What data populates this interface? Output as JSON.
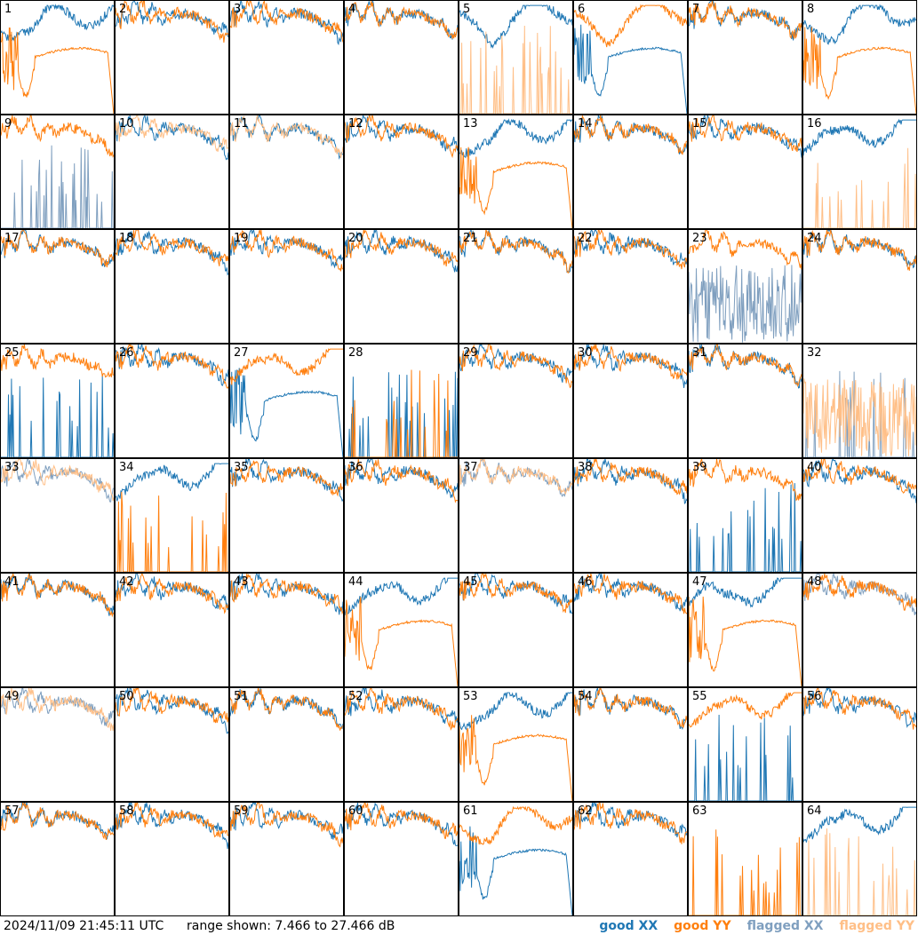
{
  "footer": {
    "timestamp": "2024/11/09 21:45:11 UTC",
    "range_label": "range shown: 7.466 to 27.466 dB"
  },
  "chart_data": {
    "type": "line",
    "title": "",
    "xlabel": "",
    "ylabel": "",
    "ylim": [
      7.466,
      27.466
    ],
    "grid": false,
    "layout": "8x8 small multiples",
    "legend_placement": "bottom-right",
    "legend": [
      {
        "label": "good XX",
        "color": "#1f77b4"
      },
      {
        "label": "good YY",
        "color": "#ff7f0e"
      },
      {
        "label": "flagged XX",
        "color": "#7f9fbf"
      },
      {
        "label": "flagged YY",
        "color": "#ffbf87"
      }
    ],
    "panels": [
      {
        "id": "1",
        "xx": "high",
        "yy": "bad",
        "yy_flag": false,
        "xx_flag": false
      },
      {
        "id": "2",
        "xx": "normal",
        "yy": "normal"
      },
      {
        "id": "3",
        "xx": "normal",
        "yy": "normal"
      },
      {
        "id": "4",
        "xx": "normal",
        "yy": "normal"
      },
      {
        "id": "5",
        "xx": "high",
        "yy": "spikes",
        "yy_flag": true
      },
      {
        "id": "6",
        "xx": "bad",
        "yy": "high"
      },
      {
        "id": "7",
        "xx": "normal",
        "yy": "normal"
      },
      {
        "id": "8",
        "xx": "high",
        "yy": "bad"
      },
      {
        "id": "9",
        "xx": "spikes",
        "yy": "normal",
        "xx_flag": true
      },
      {
        "id": "10",
        "xx": "normal",
        "yy": "normal",
        "yy_flag": true
      },
      {
        "id": "11",
        "xx": "normal",
        "yy": "normal",
        "yy_flag": true
      },
      {
        "id": "12",
        "xx": "normal",
        "yy": "normal"
      },
      {
        "id": "13",
        "xx": "high",
        "yy": "bad"
      },
      {
        "id": "14",
        "xx": "normal",
        "yy": "normal"
      },
      {
        "id": "15",
        "xx": "normal",
        "yy": "normal"
      },
      {
        "id": "16",
        "xx": "high",
        "yy": "spikes",
        "yy_flag": true
      },
      {
        "id": "17",
        "xx": "normal",
        "yy": "normal"
      },
      {
        "id": "18",
        "xx": "normal",
        "yy": "normal"
      },
      {
        "id": "19",
        "xx": "normal",
        "yy": "normal"
      },
      {
        "id": "20",
        "xx": "normal",
        "yy": "normal"
      },
      {
        "id": "21",
        "xx": "normal",
        "yy": "normal"
      },
      {
        "id": "22",
        "xx": "normal",
        "yy": "normal"
      },
      {
        "id": "23",
        "xx": "noisy",
        "yy": "normal",
        "xx_flag": true
      },
      {
        "id": "24",
        "xx": "normal",
        "yy": "normal"
      },
      {
        "id": "25",
        "xx": "spikes",
        "yy": "normal"
      },
      {
        "id": "26",
        "xx": "normal",
        "yy": "normal"
      },
      {
        "id": "27",
        "xx": "bad",
        "yy": "high"
      },
      {
        "id": "28",
        "xx": "spikes",
        "yy": "spikes"
      },
      {
        "id": "29",
        "xx": "normal",
        "yy": "normal"
      },
      {
        "id": "30",
        "xx": "normal",
        "yy": "normal"
      },
      {
        "id": "31",
        "xx": "normal",
        "yy": "normal"
      },
      {
        "id": "32",
        "xx": "spikes",
        "yy": "noisy",
        "xx_flag": true,
        "yy_flag": true
      },
      {
        "id": "33",
        "xx": "normal",
        "yy": "normal",
        "xx_flag": true,
        "yy_flag": true
      },
      {
        "id": "34",
        "xx": "high",
        "yy": "spikes"
      },
      {
        "id": "35",
        "xx": "normal",
        "yy": "normal"
      },
      {
        "id": "36",
        "xx": "normal",
        "yy": "normal"
      },
      {
        "id": "37",
        "xx": "normal",
        "yy": "normal",
        "xx_flag": true,
        "yy_flag": true
      },
      {
        "id": "38",
        "xx": "normal",
        "yy": "normal"
      },
      {
        "id": "39",
        "xx": "spikes",
        "yy": "normal"
      },
      {
        "id": "40",
        "xx": "normal",
        "yy": "normal"
      },
      {
        "id": "41",
        "xx": "normal",
        "yy": "normal"
      },
      {
        "id": "42",
        "xx": "normal",
        "yy": "normal"
      },
      {
        "id": "43",
        "xx": "normal",
        "yy": "normal"
      },
      {
        "id": "44",
        "xx": "high",
        "yy": "bad"
      },
      {
        "id": "45",
        "xx": "normal",
        "yy": "normal"
      },
      {
        "id": "46",
        "xx": "normal",
        "yy": "normal"
      },
      {
        "id": "47",
        "xx": "high",
        "yy": "bad"
      },
      {
        "id": "48",
        "xx": "normal",
        "yy": "normal",
        "xx_flag": true
      },
      {
        "id": "49",
        "xx": "normal",
        "yy": "normal",
        "xx_flag": true,
        "yy_flag": true
      },
      {
        "id": "50",
        "xx": "normal",
        "yy": "normal"
      },
      {
        "id": "51",
        "xx": "normal",
        "yy": "normal"
      },
      {
        "id": "52",
        "xx": "normal",
        "yy": "normal"
      },
      {
        "id": "53",
        "xx": "high",
        "yy": "bad"
      },
      {
        "id": "54",
        "xx": "normal",
        "yy": "normal"
      },
      {
        "id": "55",
        "xx": "spikes",
        "yy": "high"
      },
      {
        "id": "56",
        "xx": "normal",
        "yy": "normal"
      },
      {
        "id": "57",
        "xx": "normal",
        "yy": "normal"
      },
      {
        "id": "58",
        "xx": "normal",
        "yy": "normal"
      },
      {
        "id": "59",
        "xx": "normal",
        "yy": "normal"
      },
      {
        "id": "60",
        "xx": "normal",
        "yy": "normal"
      },
      {
        "id": "61",
        "xx": "bad",
        "yy": "high"
      },
      {
        "id": "62",
        "xx": "normal",
        "yy": "normal"
      },
      {
        "id": "63",
        "xx": "flat",
        "yy": "spikes"
      },
      {
        "id": "64",
        "xx": "high",
        "yy": "spikes",
        "yy_flag": true
      }
    ]
  }
}
